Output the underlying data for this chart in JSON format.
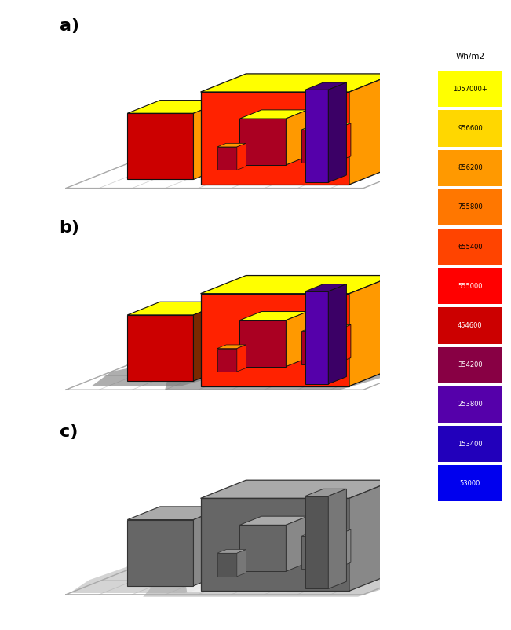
{
  "legend_title": "Wh/m2",
  "legend_labels": [
    "1057000+",
    "956600",
    "856200",
    "755800",
    "655400",
    "555000",
    "454600",
    "354200",
    "253800",
    "153400",
    "53000"
  ],
  "legend_colors": [
    "#FFFF00",
    "#FFD700",
    "#FF9900",
    "#FF7700",
    "#FF4400",
    "#FF0000",
    "#CC0000",
    "#880044",
    "#5500AA",
    "#2200BB",
    "#0000EE"
  ],
  "panel_labels": [
    "a)",
    "b)",
    "c)"
  ],
  "bg_color": "#FFFFFF"
}
